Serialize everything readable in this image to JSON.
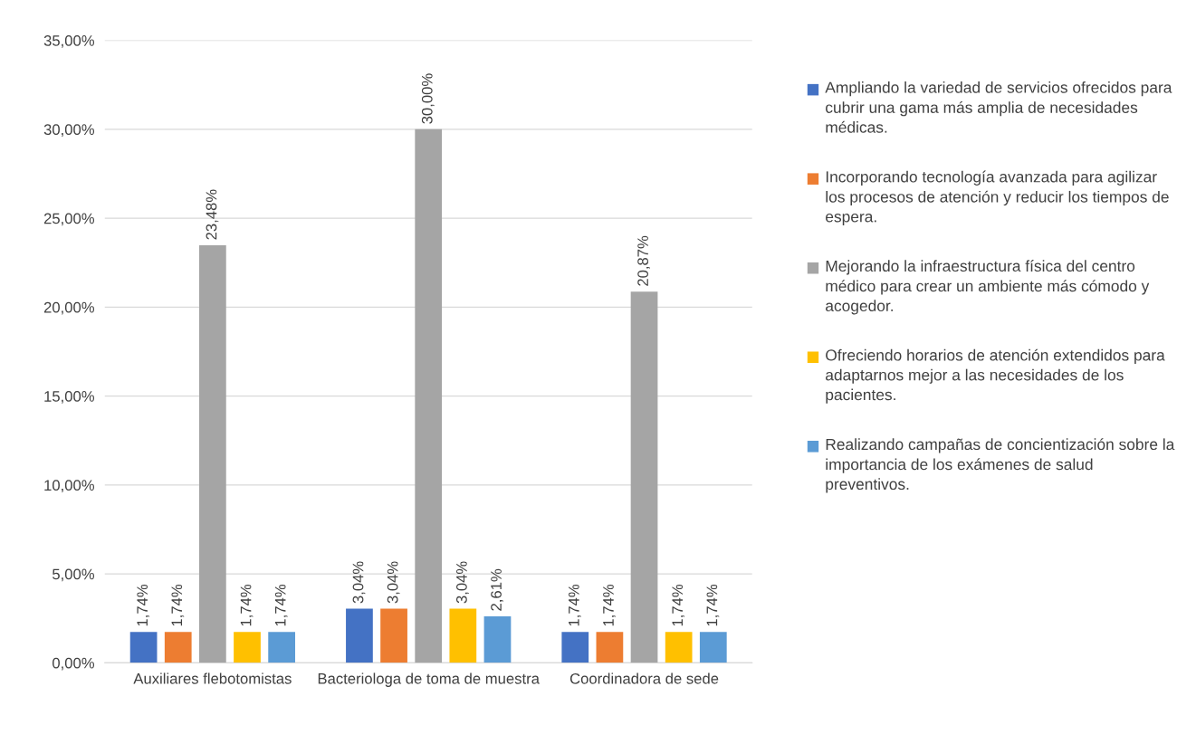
{
  "chart_data": {
    "type": "bar",
    "categories": [
      "Auxiliares flebotomistas",
      "Bacteriologa de toma de muestra",
      "Coordinadora de sede"
    ],
    "series": [
      {
        "name": "Ampliando la variedad de servicios ofrecidos para cubrir una gama más amplia de necesidades médicas.",
        "color": "#4472c4",
        "values": [
          1.74,
          3.04,
          1.74
        ],
        "value_labels": [
          "1,74%",
          "3,04%",
          "1,74%"
        ]
      },
      {
        "name": "Incorporando tecnología avanzada para agilizar los procesos de atención y reducir los tiempos de espera.",
        "color": "#ed7d31",
        "values": [
          1.74,
          3.04,
          1.74
        ],
        "value_labels": [
          "1,74%",
          "3,04%",
          "1,74%"
        ]
      },
      {
        "name": "Mejorando la infraestructura física del centro médico para crear un ambiente más cómodo y acogedor.",
        "color": "#a5a5a5",
        "values": [
          23.48,
          30.0,
          20.87
        ],
        "value_labels": [
          "23,48%",
          "30,00%",
          "20,87%"
        ]
      },
      {
        "name": "Ofreciendo horarios de atención extendidos para adaptarnos mejor a las necesidades de los pacientes.",
        "color": "#ffc000",
        "values": [
          1.74,
          3.04,
          1.74
        ],
        "value_labels": [
          "1,74%",
          "3,04%",
          "1,74%"
        ]
      },
      {
        "name": "Realizando campañas de concientización sobre la importancia de los exámenes de salud preventivos.",
        "color": "#5b9bd5",
        "values": [
          1.74,
          2.61,
          1.74
        ],
        "value_labels": [
          "1,74%",
          "2,61%",
          "1,74%"
        ]
      }
    ],
    "ylim": [
      0,
      35
    ],
    "yticks": [
      {
        "value": 0,
        "label": "0,00%"
      },
      {
        "value": 5,
        "label": "5,00%"
      },
      {
        "value": 10,
        "label": "10,00%"
      },
      {
        "value": 15,
        "label": "15,00%"
      },
      {
        "value": 20,
        "label": "20,00%"
      },
      {
        "value": 25,
        "label": "25,00%"
      },
      {
        "value": 30,
        "label": "30,00%"
      },
      {
        "value": 35,
        "label": "35,00%"
      }
    ],
    "grid": "y",
    "legend": "right"
  }
}
